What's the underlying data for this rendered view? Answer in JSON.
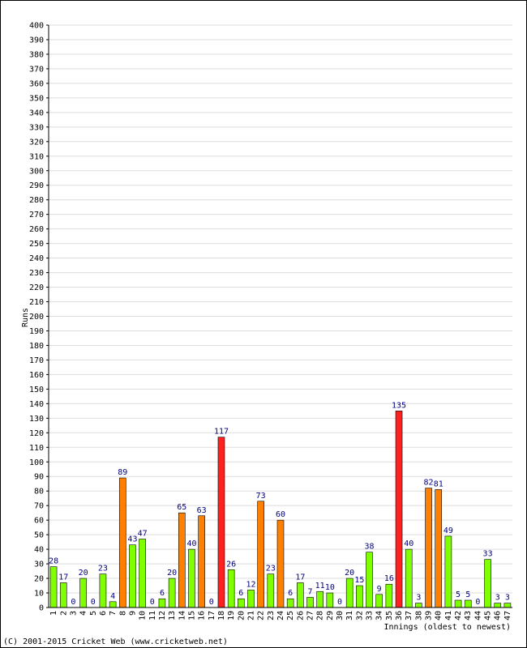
{
  "chart_data": {
    "type": "bar",
    "ylabel": "Runs",
    "xlabel": "Innings (oldest to newest)",
    "ylim": [
      0,
      400
    ],
    "ytick_step": 10,
    "grid": true,
    "categories": [
      "1",
      "2",
      "3",
      "4",
      "5",
      "6",
      "7",
      "8",
      "9",
      "10",
      "11",
      "12",
      "13",
      "14",
      "15",
      "16",
      "17",
      "18",
      "19",
      "20",
      "21",
      "22",
      "23",
      "24",
      "25",
      "26",
      "27",
      "28",
      "29",
      "30",
      "31",
      "32",
      "33",
      "34",
      "35",
      "36",
      "37",
      "38",
      "39",
      "40",
      "41",
      "42",
      "43",
      "44",
      "45",
      "46",
      "47"
    ],
    "values": [
      28,
      17,
      0,
      20,
      0,
      23,
      4,
      89,
      43,
      47,
      0,
      6,
      20,
      65,
      40,
      63,
      0,
      117,
      26,
      6,
      12,
      73,
      23,
      60,
      6,
      17,
      7,
      11,
      10,
      0,
      20,
      15,
      38,
      9,
      16,
      135,
      40,
      3,
      82,
      81,
      49,
      5,
      5,
      0,
      33,
      3,
      3
    ],
    "colors": {
      "under_50": "#80ff00",
      "fifty_to_99": "#ff8000",
      "hundred_plus": "#ff2020",
      "value_label": "#000080",
      "grid": "#dddddd"
    }
  },
  "footer": {
    "copyright": "(C) 2001-2015 Cricket Web (www.cricketweb.net)"
  }
}
